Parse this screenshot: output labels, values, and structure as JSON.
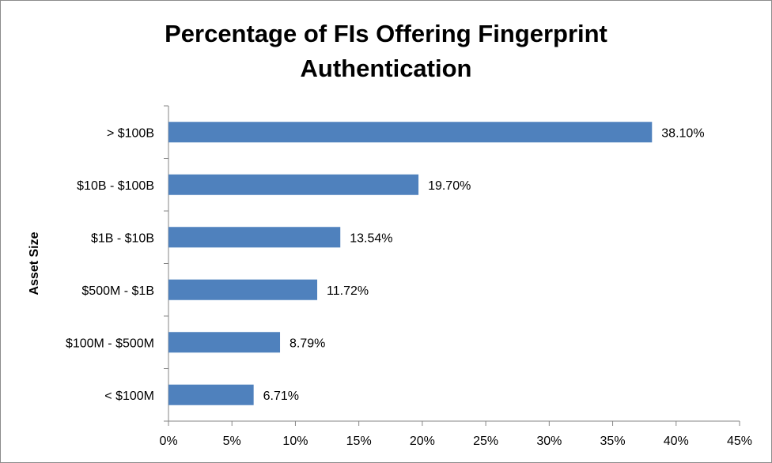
{
  "chart_data": {
    "type": "bar",
    "orientation": "horizontal",
    "title_lines": [
      "Percentage of FIs Offering Fingerprint",
      "Authentication"
    ],
    "ylabel": "Asset Size",
    "xlabel": "",
    "categories": [
      "> $100B",
      "$10B - $100B",
      "$1B - $10B",
      "$500M - $1B",
      "$100M - $500M",
      "< $100M"
    ],
    "values": [
      38.1,
      19.7,
      13.54,
      11.72,
      8.79,
      6.71
    ],
    "data_labels": [
      "38.10%",
      "19.70%",
      "13.54%",
      "11.72%",
      "8.79%",
      "6.71%"
    ],
    "xlim": [
      0,
      45
    ],
    "xticks": [
      0,
      5,
      10,
      15,
      20,
      25,
      30,
      35,
      40,
      45
    ],
    "xtick_labels": [
      "0%",
      "5%",
      "10%",
      "15%",
      "20%",
      "25%",
      "30%",
      "35%",
      "40%",
      "45%"
    ],
    "bar_color": "#4f81bd",
    "grid": false,
    "legend": "none"
  }
}
